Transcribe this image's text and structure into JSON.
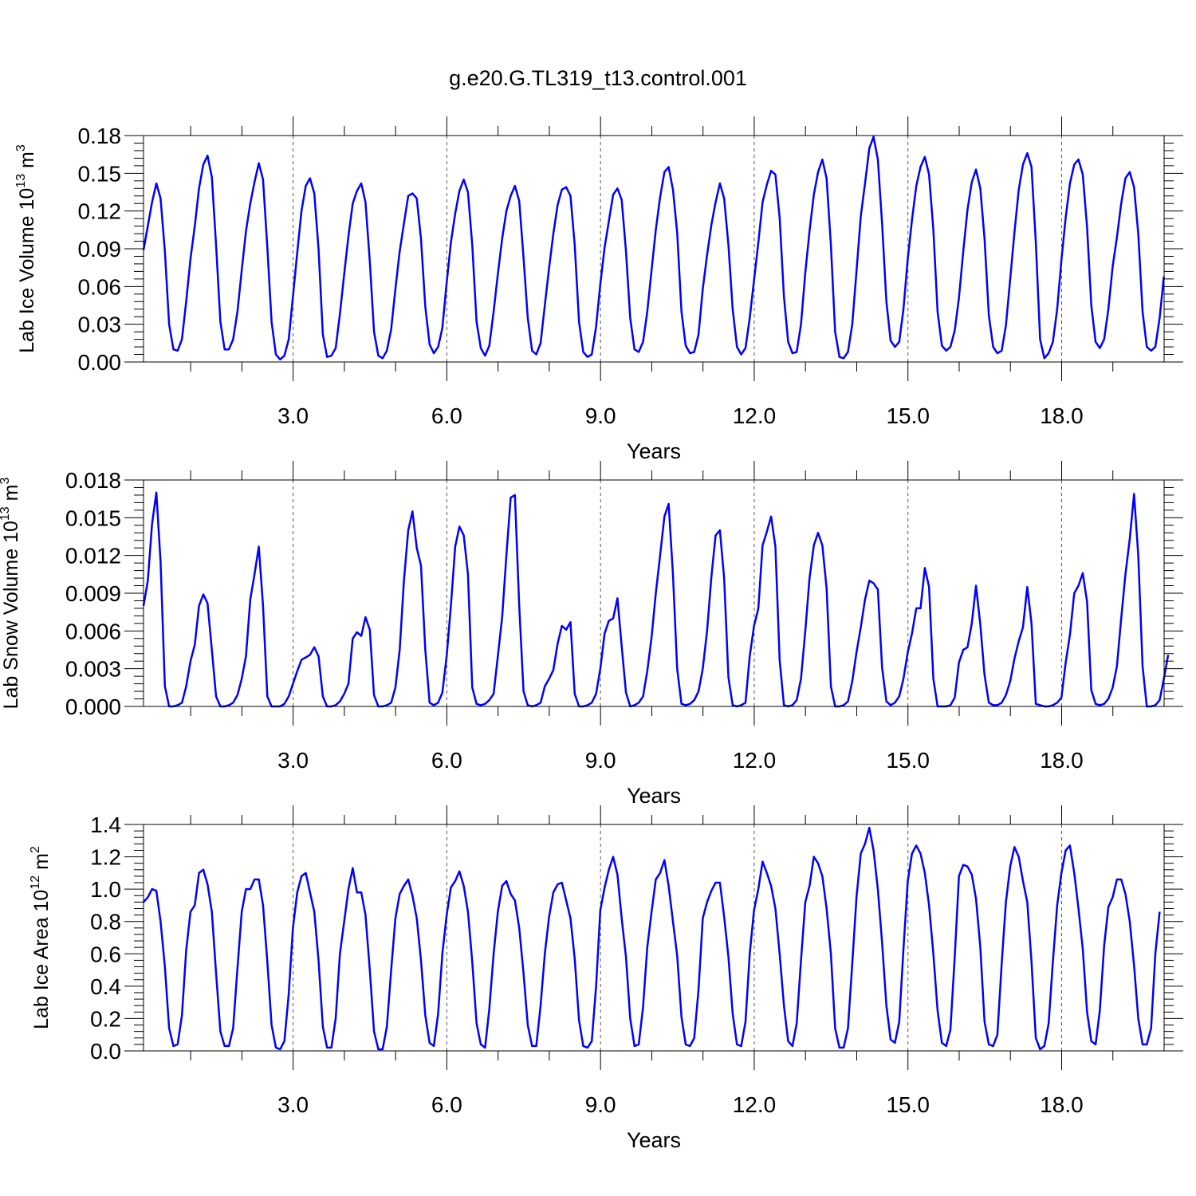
{
  "figure_title": "g.e20.G.TL319_t13.control.001",
  "line_color": "#0000ff",
  "chart_data": [
    {
      "type": "line",
      "title": "g.e20.G.TL319_t13.control.001",
      "xlabel": "Years",
      "ylabel": {
        "main": "Lab Ice Volume 10",
        "exp": "13",
        "unit": " m",
        "unit_exp": "3"
      },
      "xlim": [
        0.08,
        20.0
      ],
      "ylim": [
        0,
        0.18
      ],
      "xticks": [
        3.0,
        6.0,
        9.0,
        12.0,
        15.0,
        18.0
      ],
      "xtick_labels": [
        "3.0",
        "6.0",
        "9.0",
        "12.0",
        "15.0",
        "18.0"
      ],
      "yticks": [
        0,
        0.03,
        0.06,
        0.09,
        0.12,
        0.15,
        0.18
      ],
      "ytick_labels": [
        "0.00",
        "0.03",
        "0.06",
        "0.09",
        "0.12",
        "0.15",
        "0.18"
      ],
      "vertical_dashed_lines_at": [
        3,
        6,
        9,
        12,
        15,
        18
      ],
      "series": [
        {
          "x_start": 0.08,
          "x_step": 0.08333,
          "values": [
            0.089,
            0.108,
            0.127,
            0.142,
            0.13,
            0.088,
            0.03,
            0.01,
            0.009,
            0.018,
            0.048,
            0.082,
            0.108,
            0.138,
            0.157,
            0.164,
            0.147,
            0.093,
            0.032,
            0.01,
            0.01,
            0.018,
            0.04,
            0.073,
            0.104,
            0.126,
            0.143,
            0.158,
            0.145,
            0.091,
            0.032,
            0.006,
            0.002,
            0.005,
            0.018,
            0.052,
            0.087,
            0.12,
            0.14,
            0.146,
            0.134,
            0.09,
            0.022,
            0.004,
            0.005,
            0.011,
            0.038,
            0.07,
            0.1,
            0.126,
            0.136,
            0.142,
            0.127,
            0.08,
            0.024,
            0.005,
            0.003,
            0.009,
            0.026,
            0.058,
            0.088,
            0.11,
            0.132,
            0.134,
            0.13,
            0.098,
            0.044,
            0.014,
            0.007,
            0.012,
            0.027,
            0.063,
            0.095,
            0.118,
            0.136,
            0.145,
            0.135,
            0.093,
            0.032,
            0.011,
            0.005,
            0.013,
            0.04,
            0.07,
            0.098,
            0.12,
            0.132,
            0.14,
            0.128,
            0.083,
            0.035,
            0.009,
            0.006,
            0.015,
            0.045,
            0.075,
            0.102,
            0.125,
            0.137,
            0.139,
            0.132,
            0.093,
            0.032,
            0.008,
            0.004,
            0.006,
            0.028,
            0.062,
            0.091,
            0.112,
            0.133,
            0.138,
            0.129,
            0.088,
            0.035,
            0.01,
            0.008,
            0.016,
            0.04,
            0.073,
            0.105,
            0.131,
            0.151,
            0.155,
            0.137,
            0.103,
            0.04,
            0.013,
            0.007,
            0.008,
            0.022,
            0.058,
            0.085,
            0.109,
            0.127,
            0.142,
            0.13,
            0.093,
            0.042,
            0.012,
            0.006,
            0.011,
            0.035,
            0.065,
            0.095,
            0.127,
            0.141,
            0.152,
            0.149,
            0.115,
            0.052,
            0.016,
            0.007,
            0.008,
            0.03,
            0.071,
            0.104,
            0.133,
            0.151,
            0.161,
            0.146,
            0.093,
            0.024,
            0.004,
            0.003,
            0.008,
            0.03,
            0.072,
            0.116,
            0.142,
            0.17,
            0.179,
            0.161,
            0.11,
            0.048,
            0.017,
            0.012,
            0.016,
            0.042,
            0.082,
            0.113,
            0.14,
            0.155,
            0.163,
            0.149,
            0.105,
            0.04,
            0.013,
            0.009,
            0.012,
            0.025,
            0.051,
            0.088,
            0.121,
            0.143,
            0.153,
            0.138,
            0.098,
            0.037,
            0.012,
            0.007,
            0.009,
            0.029,
            0.066,
            0.103,
            0.137,
            0.157,
            0.166,
            0.155,
            0.095,
            0.018,
            0.003,
            0.007,
            0.016,
            0.042,
            0.081,
            0.115,
            0.142,
            0.157,
            0.161,
            0.149,
            0.107,
            0.045,
            0.016,
            0.011,
            0.018,
            0.042,
            0.076,
            0.099,
            0.126,
            0.146,
            0.151,
            0.139,
            0.102,
            0.04,
            0.012,
            0.009,
            0.012,
            0.035,
            0.068
          ]
        }
      ]
    },
    {
      "type": "line",
      "xlabel": "Years",
      "ylabel": {
        "main": "Lab Snow Volume 10",
        "exp": "13",
        "unit": " m",
        "unit_exp": "3"
      },
      "xlim": [
        0.08,
        20.0
      ],
      "ylim": [
        0,
        0.018
      ],
      "xticks": [
        3.0,
        6.0,
        9.0,
        12.0,
        15.0,
        18.0
      ],
      "xtick_labels": [
        "3.0",
        "6.0",
        "9.0",
        "12.0",
        "15.0",
        "18.0"
      ],
      "yticks": [
        0,
        0.003,
        0.006,
        0.009,
        0.012,
        0.015,
        0.018
      ],
      "ytick_labels": [
        "0.000",
        "0.003",
        "0.006",
        "0.009",
        "0.012",
        "0.015",
        "0.018"
      ],
      "vertical_dashed_lines_at": [
        3,
        6,
        9,
        12,
        15,
        18
      ],
      "series": [
        {
          "x_start": 0.08,
          "x_step": 0.08333,
          "values": [
            0.008,
            0.01,
            0.0145,
            0.017,
            0.0115,
            0.0016,
            0.0,
            0.0,
            0.0001,
            0.0003,
            0.0016,
            0.0036,
            0.0049,
            0.008,
            0.0089,
            0.0082,
            0.0045,
            0.0008,
            0.0,
            0.0,
            0.0001,
            0.0003,
            0.0009,
            0.0022,
            0.004,
            0.0085,
            0.0105,
            0.0127,
            0.008,
            0.0008,
            0.0,
            0.0,
            0.0,
            0.0002,
            0.0008,
            0.0018,
            0.0028,
            0.0037,
            0.0039,
            0.0041,
            0.0047,
            0.004,
            0.0008,
            0.0,
            0.0,
            0.0001,
            0.0004,
            0.001,
            0.0018,
            0.0054,
            0.0059,
            0.0056,
            0.0071,
            0.0061,
            0.0009,
            0.0,
            0.0,
            0.0001,
            0.0003,
            0.0015,
            0.0045,
            0.01,
            0.014,
            0.0155,
            0.0126,
            0.0112,
            0.0045,
            0.0003,
            0.0001,
            0.0003,
            0.0011,
            0.004,
            0.008,
            0.0127,
            0.0143,
            0.0136,
            0.0105,
            0.0015,
            0.0002,
            0.0001,
            0.0002,
            0.0005,
            0.001,
            0.004,
            0.0071,
            0.012,
            0.0166,
            0.0168,
            0.008,
            0.0012,
            0.0001,
            0.0,
            0.0001,
            0.0003,
            0.0016,
            0.0022,
            0.0029,
            0.005,
            0.0064,
            0.0061,
            0.0067,
            0.001,
            0.0,
            0.0,
            0.0001,
            0.0003,
            0.001,
            0.003,
            0.0058,
            0.0068,
            0.007,
            0.0086,
            0.0048,
            0.0011,
            0.0,
            0.0001,
            0.0003,
            0.0008,
            0.0028,
            0.0055,
            0.009,
            0.012,
            0.0151,
            0.0161,
            0.0105,
            0.003,
            0.0002,
            0.0001,
            0.0002,
            0.0005,
            0.0012,
            0.003,
            0.006,
            0.0103,
            0.0136,
            0.014,
            0.0102,
            0.0023,
            0.0001,
            0.0,
            0.0001,
            0.0003,
            0.004,
            0.0064,
            0.0078,
            0.0128,
            0.0139,
            0.0151,
            0.0127,
            0.0037,
            0.0001,
            0.0,
            0.0001,
            0.0005,
            0.0022,
            0.006,
            0.0102,
            0.0128,
            0.0138,
            0.0128,
            0.0094,
            0.0016,
            0.0,
            0.0,
            0.0001,
            0.0004,
            0.002,
            0.0043,
            0.0063,
            0.0085,
            0.01,
            0.0098,
            0.0093,
            0.0031,
            0.0004,
            0.0001,
            0.0003,
            0.0008,
            0.0022,
            0.0043,
            0.0058,
            0.0078,
            0.0078,
            0.011,
            0.0095,
            0.0022,
            0.0,
            0.0,
            0.0,
            0.0001,
            0.0007,
            0.0035,
            0.0045,
            0.0047,
            0.0066,
            0.0096,
            0.0065,
            0.0025,
            0.0003,
            0.0001,
            0.0001,
            0.0003,
            0.0009,
            0.002,
            0.0038,
            0.0052,
            0.0063,
            0.0095,
            0.0066,
            0.0002,
            0.0001,
            0.0,
            0.0,
            0.0001,
            0.0003,
            0.0007,
            0.0035,
            0.0057,
            0.009,
            0.0096,
            0.0106,
            0.0083,
            0.0013,
            0.0002,
            0.0001,
            0.0002,
            0.0006,
            0.0015,
            0.0032,
            0.007,
            0.0105,
            0.0133,
            0.0169,
            0.012,
            0.0032,
            0.0,
            0.0,
            0.0001,
            0.0005,
            0.0022,
            0.0041
          ]
        }
      ]
    },
    {
      "type": "line",
      "xlabel": "Years",
      "ylabel": {
        "main": "Lab Ice Area 10",
        "exp": "12",
        "unit": " m",
        "unit_exp": "2"
      },
      "xlim": [
        0.08,
        20.0
      ],
      "ylim": [
        0,
        1.4
      ],
      "xticks": [
        3.0,
        6.0,
        9.0,
        12.0,
        15.0,
        18.0
      ],
      "xtick_labels": [
        "3.0",
        "6.0",
        "9.0",
        "12.0",
        "15.0",
        "18.0"
      ],
      "yticks": [
        0,
        0.2,
        0.4,
        0.6,
        0.8,
        1.0,
        1.2,
        1.4
      ],
      "ytick_labels": [
        "0.0",
        "0.2",
        "0.4",
        "0.6",
        "0.8",
        "1.0",
        "1.2",
        "1.4"
      ],
      "vertical_dashed_lines_at": [
        3,
        6,
        9,
        12,
        15,
        18
      ],
      "series": [
        {
          "x_start": 0.08,
          "x_step": 0.08333,
          "values": [
            0.92,
            0.95,
            1.0,
            0.99,
            0.8,
            0.52,
            0.14,
            0.03,
            0.04,
            0.22,
            0.62,
            0.86,
            0.9,
            1.1,
            1.12,
            1.03,
            0.86,
            0.48,
            0.12,
            0.03,
            0.03,
            0.14,
            0.51,
            0.86,
            1.0,
            1.0,
            1.06,
            1.06,
            0.9,
            0.55,
            0.16,
            0.02,
            0.01,
            0.06,
            0.35,
            0.76,
            0.98,
            1.08,
            1.1,
            0.98,
            0.86,
            0.56,
            0.15,
            0.02,
            0.02,
            0.2,
            0.6,
            0.8,
            1.0,
            1.13,
            0.98,
            0.98,
            0.84,
            0.5,
            0.12,
            0.01,
            0.01,
            0.15,
            0.5,
            0.82,
            0.97,
            1.02,
            1.06,
            0.96,
            0.82,
            0.56,
            0.22,
            0.05,
            0.03,
            0.23,
            0.6,
            0.84,
            1.01,
            1.05,
            1.11,
            1.02,
            0.86,
            0.55,
            0.17,
            0.04,
            0.02,
            0.26,
            0.6,
            0.86,
            1.02,
            1.05,
            0.97,
            0.93,
            0.76,
            0.48,
            0.16,
            0.03,
            0.03,
            0.28,
            0.6,
            0.83,
            0.98,
            1.03,
            1.04,
            0.93,
            0.82,
            0.57,
            0.19,
            0.03,
            0.02,
            0.06,
            0.4,
            0.87,
            1.01,
            1.12,
            1.2,
            1.09,
            0.82,
            0.58,
            0.2,
            0.03,
            0.04,
            0.27,
            0.64,
            0.86,
            1.06,
            1.1,
            1.18,
            1.02,
            0.8,
            0.59,
            0.21,
            0.04,
            0.03,
            0.08,
            0.38,
            0.82,
            0.92,
            0.99,
            1.04,
            1.04,
            0.83,
            0.58,
            0.23,
            0.04,
            0.03,
            0.18,
            0.6,
            0.87,
            1.0,
            1.17,
            1.1,
            1.02,
            0.88,
            0.6,
            0.28,
            0.06,
            0.03,
            0.17,
            0.56,
            0.92,
            1.02,
            1.2,
            1.16,
            1.08,
            0.88,
            0.6,
            0.14,
            0.02,
            0.02,
            0.14,
            0.54,
            0.95,
            1.22,
            1.28,
            1.38,
            1.24,
            1.0,
            0.67,
            0.28,
            0.07,
            0.05,
            0.18,
            0.63,
            1.05,
            1.22,
            1.27,
            1.22,
            1.1,
            0.9,
            0.6,
            0.25,
            0.05,
            0.03,
            0.13,
            0.58,
            1.08,
            1.15,
            1.14,
            1.09,
            0.94,
            0.64,
            0.18,
            0.04,
            0.03,
            0.1,
            0.54,
            0.92,
            1.14,
            1.26,
            1.2,
            1.05,
            0.92,
            0.55,
            0.08,
            0.01,
            0.03,
            0.17,
            0.55,
            0.9,
            1.1,
            1.24,
            1.27,
            1.1,
            0.88,
            0.63,
            0.24,
            0.06,
            0.04,
            0.25,
            0.65,
            0.89,
            0.95,
            1.06,
            1.06,
            0.97,
            0.8,
            0.53,
            0.2,
            0.04,
            0.04,
            0.14,
            0.6,
            0.86
          ]
        }
      ]
    }
  ]
}
